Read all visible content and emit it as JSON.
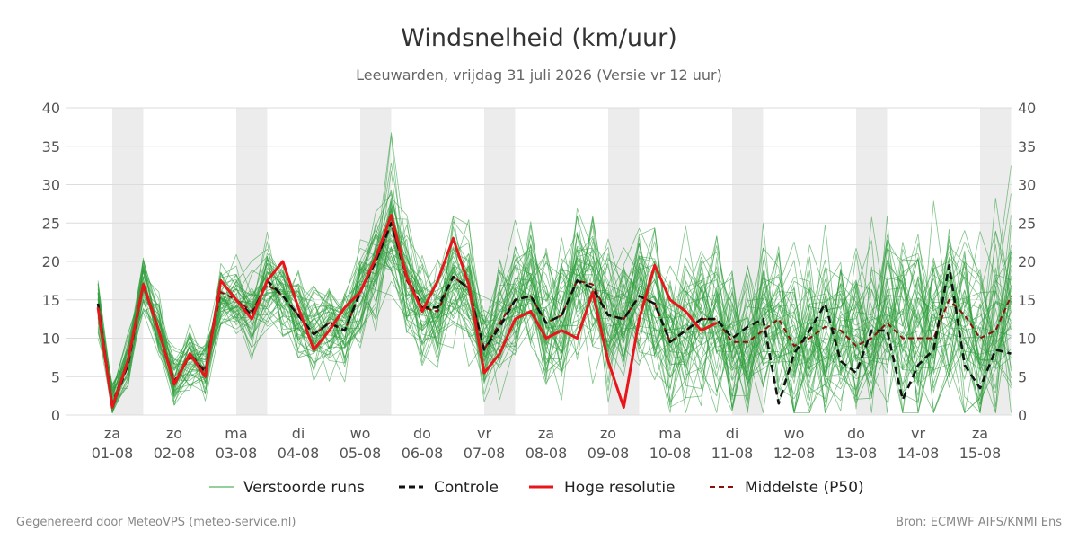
{
  "chart_data": {
    "type": "line",
    "title": "Windsnelheid (km/uur)",
    "subtitle": "Leeuwarden, vrijdag 31 juli 2026 (Versie vr 12 uur)",
    "ylim": [
      0,
      40
    ],
    "yticks": [
      0,
      5,
      10,
      15,
      20,
      25,
      30,
      35,
      40
    ],
    "xlim": [
      -0.23,
      14.5
    ],
    "day_ticks": [
      {
        "x": 0,
        "day": "za",
        "date": "01-08"
      },
      {
        "x": 1,
        "day": "zo",
        "date": "02-08"
      },
      {
        "x": 2,
        "day": "ma",
        "date": "03-08"
      },
      {
        "x": 3,
        "day": "di",
        "date": "04-08"
      },
      {
        "x": 4,
        "day": "wo",
        "date": "05-08"
      },
      {
        "x": 5,
        "day": "do",
        "date": "06-08"
      },
      {
        "x": 6,
        "day": "vr",
        "date": "07-08"
      },
      {
        "x": 7,
        "day": "za",
        "date": "08-08"
      },
      {
        "x": 8,
        "day": "zo",
        "date": "09-08"
      },
      {
        "x": 9,
        "day": "ma",
        "date": "10-08"
      },
      {
        "x": 10,
        "day": "di",
        "date": "11-08"
      },
      {
        "x": 11,
        "day": "wo",
        "date": "12-08"
      },
      {
        "x": 12,
        "day": "do",
        "date": "13-08"
      },
      {
        "x": 13,
        "day": "vr",
        "date": "14-08"
      },
      {
        "x": 14,
        "day": "za",
        "date": "15-08"
      }
    ],
    "night_bands": [
      [
        0,
        0.5
      ],
      [
        2,
        2.5
      ],
      [
        4,
        4.5
      ],
      [
        6,
        6.5
      ],
      [
        8,
        8.5
      ],
      [
        10,
        10.5
      ],
      [
        12,
        12.5
      ],
      [
        14,
        14.5
      ]
    ],
    "grid": true,
    "legend_position": "bottom",
    "ensemble_members": 50,
    "series": [
      {
        "name": "Controle",
        "style": "dashed",
        "color": "#111111",
        "x": [
          -0.23,
          0,
          0.25,
          0.5,
          0.75,
          1,
          1.25,
          1.5,
          1.75,
          2,
          2.25,
          2.5,
          2.75,
          3,
          3.25,
          3.5,
          3.75,
          4,
          4.25,
          4.5,
          4.75,
          5,
          5.25,
          5.5,
          5.75,
          6,
          6.25,
          6.5,
          6.75,
          7,
          7.25,
          7.5,
          7.75,
          8,
          8.25,
          8.5,
          8.75,
          9,
          9.25,
          9.5,
          9.75,
          10,
          10.25,
          10.5,
          10.75,
          11,
          11.25,
          11.5,
          11.75,
          12,
          12.25,
          12.5,
          12.75,
          13,
          13.25,
          13.5,
          13.75,
          14,
          14.25,
          14.5
        ],
        "values": [
          14.5,
          1.0,
          6.5,
          17.0,
          11.0,
          4.0,
          8.0,
          5.5,
          17.5,
          15.0,
          13.0,
          17.5,
          15.5,
          13.0,
          10.5,
          12.0,
          11.0,
          16.0,
          20.0,
          25.0,
          18.0,
          14.0,
          14.0,
          18.0,
          16.5,
          8.5,
          11.5,
          15.0,
          15.5,
          12.0,
          13.0,
          17.5,
          16.5,
          13.0,
          12.5,
          15.5,
          14.5,
          9.5,
          11.0,
          12.5,
          12.5,
          10.0,
          11.5,
          12.5,
          1.5,
          8.0,
          11.0,
          14.5,
          7.0,
          5.5,
          11.0,
          11.0,
          2.0,
          6.5,
          8.5,
          19.5,
          6.5,
          3.5,
          8.5,
          8.0
        ]
      },
      {
        "name": "Hoge resolutie",
        "style": "solid",
        "color": "#e8161b",
        "x": [
          -0.23,
          0,
          0.25,
          0.5,
          0.75,
          1,
          1.25,
          1.5,
          1.75,
          2,
          2.25,
          2.5,
          2.75,
          3,
          3.25,
          3.5,
          3.75,
          4,
          4.25,
          4.5,
          4.75,
          5,
          5.25,
          5.5,
          5.75,
          6,
          6.25,
          6.5,
          6.75,
          7,
          7.25,
          7.5,
          7.75,
          8,
          8.25,
          8.5,
          8.75,
          9,
          9.25,
          9.5,
          9.75
        ],
        "values": [
          14.0,
          1.0,
          7.0,
          17.0,
          11.0,
          4.0,
          8.0,
          5.0,
          17.5,
          15.0,
          12.5,
          17.5,
          20.0,
          14.0,
          8.5,
          11.0,
          14.0,
          16.0,
          20.5,
          26.0,
          18.0,
          13.5,
          17.5,
          23.0,
          17.0,
          5.5,
          8.0,
          12.5,
          13.5,
          10.0,
          11.0,
          10.0,
          16.0,
          7.0,
          1.0,
          12.5,
          19.5,
          15.0,
          13.5,
          11.0,
          12.0
        ]
      },
      {
        "name": "Middelste (P50)",
        "style": "dashed",
        "color": "#8b0f10",
        "x": [
          -0.23,
          0,
          0.25,
          0.5,
          0.75,
          1,
          1.25,
          1.5,
          1.75,
          2,
          2.25,
          2.5,
          2.75,
          3,
          3.25,
          3.5,
          3.75,
          4,
          4.25,
          4.5,
          4.75,
          5,
          5.25,
          5.5,
          5.75,
          6,
          6.25,
          6.5,
          6.75,
          7,
          7.25,
          7.5,
          7.75,
          8,
          8.25,
          8.5,
          8.75,
          9,
          9.25,
          9.5,
          9.75,
          10,
          10.25,
          10.5,
          10.75,
          11,
          11.25,
          11.5,
          11.75,
          12,
          12.25,
          12.5,
          12.75,
          13,
          13.25,
          13.5,
          13.75,
          14,
          14.25,
          14.5
        ],
        "values": [
          14.5,
          1.5,
          7.0,
          17.0,
          11.0,
          4.5,
          7.5,
          6.0,
          16.0,
          15.0,
          13.5,
          17.0,
          15.5,
          13.0,
          10.5,
          12.0,
          11.0,
          16.0,
          20.0,
          25.0,
          17.5,
          14.0,
          13.5,
          18.0,
          16.5,
          8.5,
          12.0,
          15.0,
          15.5,
          12.0,
          13.0,
          17.5,
          17.0,
          13.0,
          12.5,
          15.5,
          14.5,
          9.5,
          11.0,
          12.5,
          12.5,
          9.5,
          9.5,
          11.0,
          12.5,
          9.0,
          10.0,
          11.5,
          11.0,
          9.0,
          10.0,
          12.0,
          10.0,
          10.0,
          10.0,
          15.0,
          13.0,
          10.0,
          11.0,
          15.5
        ]
      },
      {
        "name": "Verstoorde runs",
        "style": "thin",
        "color": "#2e9e3c",
        "note_members": 50
      }
    ]
  },
  "legend": {
    "items": [
      {
        "label": "Verstoorde runs",
        "color": "#2e9e3c",
        "style": "thin"
      },
      {
        "label": "Controle",
        "color": "#111111",
        "style": "dashed"
      },
      {
        "label": "Hoge resolutie",
        "color": "#e8161b",
        "style": "solid"
      },
      {
        "label": "Middelste (P50)",
        "color": "#8b0f10",
        "style": "dashed"
      }
    ]
  },
  "footer": {
    "left": "Gegenereerd door MeteoVPS (meteo-service.nl)",
    "right": "Bron: ECMWF AIFS/KNMI Ens"
  }
}
